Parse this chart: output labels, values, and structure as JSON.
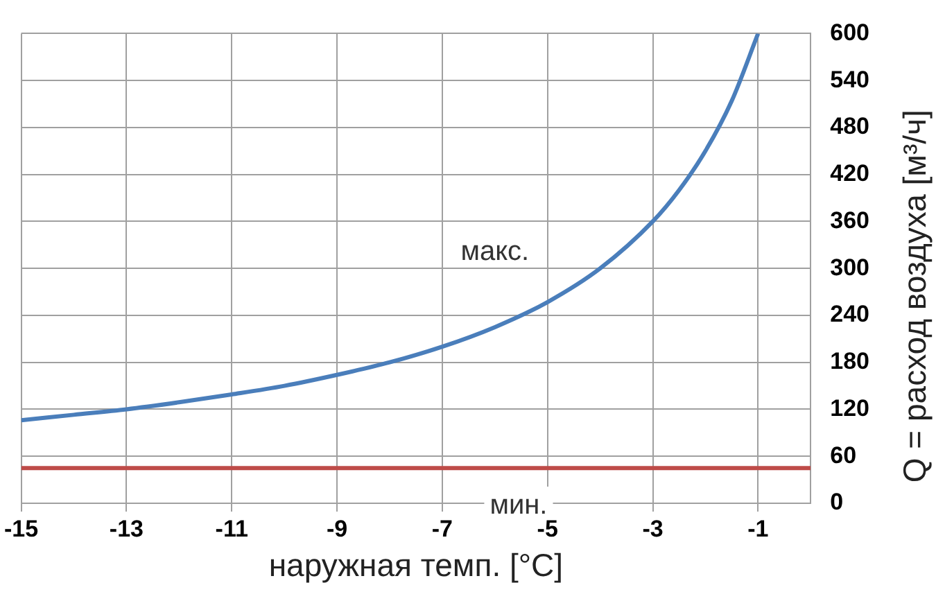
{
  "chart_data": {
    "type": "line",
    "xlabel": "наружная темп. [°C]",
    "ylabel": "Q = расход воздуха [м³/ч]",
    "xlim": [
      -15,
      0
    ],
    "xticks": [
      -15,
      -13,
      -11,
      -9,
      -7,
      -5,
      -3,
      -1
    ],
    "ylim": [
      0,
      600
    ],
    "yticks": [
      0,
      60,
      120,
      180,
      240,
      300,
      360,
      420,
      480,
      540,
      600
    ],
    "grid": true,
    "legend": false,
    "marker": "none",
    "line_style": "solid",
    "series": [
      {
        "color": "#4a7ebb",
        "x": [
          -15,
          -14,
          -13,
          -12,
          -11,
          -10,
          -9,
          -8,
          -7,
          -6,
          -5,
          -4,
          -3,
          -2.5,
          -2,
          -1.5,
          -1
        ],
        "values": [
          106,
          113,
          120,
          129,
          139,
          150,
          164,
          180,
          200,
          225,
          257,
          300,
          360,
          400,
          450,
          514,
          600
        ]
      },
      {
        "color": "#be4b48",
        "x": [
          -15,
          0
        ],
        "values": [
          45,
          45
        ]
      }
    ],
    "annotations": [
      "макс.",
      "мин."
    ]
  }
}
